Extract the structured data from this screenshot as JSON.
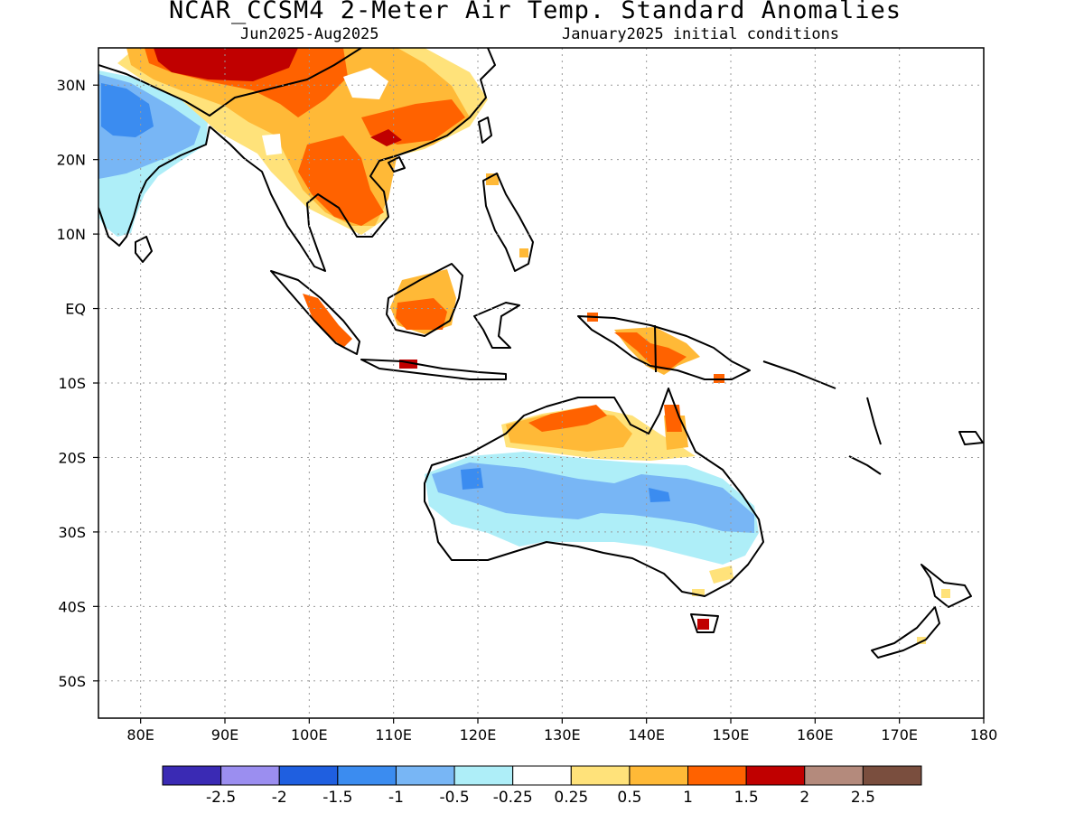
{
  "header": {
    "title": "NCAR_CCSM4 2-Meter Air Temp. Standard Anomalies",
    "period": "Jun2025-Aug2025",
    "init": "January2025 initial conditions"
  },
  "map": {
    "lon_range": [
      75,
      180
    ],
    "lat_range": [
      -55,
      35
    ],
    "x_ticks": [
      {
        "lon": 80,
        "label": "80E"
      },
      {
        "lon": 90,
        "label": "90E"
      },
      {
        "lon": 100,
        "label": "100E"
      },
      {
        "lon": 110,
        "label": "110E"
      },
      {
        "lon": 120,
        "label": "120E"
      },
      {
        "lon": 130,
        "label": "130E"
      },
      {
        "lon": 140,
        "label": "140E"
      },
      {
        "lon": 150,
        "label": "150E"
      },
      {
        "lon": 160,
        "label": "160E"
      },
      {
        "lon": 170,
        "label": "170E"
      },
      {
        "lon": 180,
        "label": "180"
      }
    ],
    "y_ticks": [
      {
        "lat": 30,
        "label": "30N"
      },
      {
        "lat": 20,
        "label": "20N"
      },
      {
        "lat": 10,
        "label": "10N"
      },
      {
        "lat": 0,
        "label": "EQ"
      },
      {
        "lat": -10,
        "label": "10S"
      },
      {
        "lat": -20,
        "label": "20S"
      },
      {
        "lat": -30,
        "label": "30S"
      },
      {
        "lat": -40,
        "label": "40S"
      },
      {
        "lat": -50,
        "label": "50S"
      }
    ],
    "grid": "dotted"
  },
  "colorbar": {
    "colors": [
      "#3a2ab4",
      "#9b8ef0",
      "#1f5fe0",
      "#3b8cf0",
      "#78b6f5",
      "#aeeef8",
      "#ffffff",
      "#ffe27a",
      "#ffb937",
      "#ff6200",
      "#c00000",
      "#b48a7c",
      "#7a4e3e"
    ],
    "labels": [
      "-2.5",
      "-2",
      "-1.5",
      "-1",
      "-0.5",
      "-0.25",
      "0.25",
      "0.5",
      "1",
      "1.5",
      "2",
      "2.5"
    ]
  },
  "coast_color": "#000000"
}
